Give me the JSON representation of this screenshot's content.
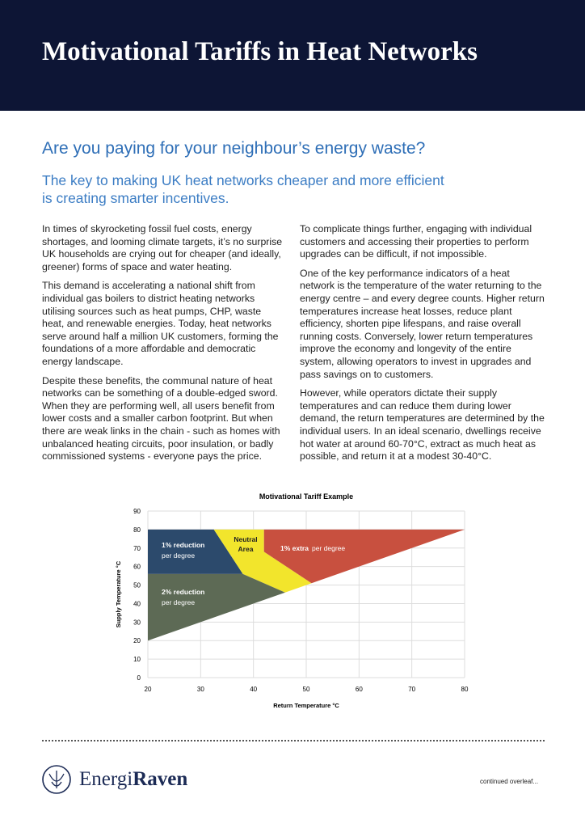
{
  "header": {
    "title": "Motivational Tariffs in Heat Networks"
  },
  "headline": "Are you paying for your neighbour’s energy waste?",
  "subheadline": "The key to making UK heat networks cheaper and more efficient is creating smarter incentives.",
  "columns": [
    [
      "In times of skyrocketing fossil fuel costs, energy shortages, and looming climate targets, it’s no surprise UK households are crying out for cheaper (and ideally, greener) forms of space and water heating.",
      "This demand is accelerating a national shift from individual gas boilers to district heating networks utilising sources such as heat pumps, CHP, waste heat, and renewable energies. Today, heat networks serve around half a million UK customers, forming the foundations of a more affordable and democratic energy landscape.",
      "Despite these benefits, the communal nature of heat networks can be something of a double-edged sword. When they are performing well, all users benefit from lower costs and a smaller carbon footprint. But when there are weak links in the chain - such as homes with unbalanced heating circuits, poor insulation, or badly commissioned systems - everyone pays the price."
    ],
    [
      "To complicate things further, engaging with individual customers and accessing their properties to perform upgrades can be difficult, if not impossible.",
      "One of the key performance indicators of a heat network is the temperature of the water returning to the energy centre – and every degree counts. Higher return temperatures increase heat losses, reduce plant efficiency, shorten pipe lifespans, and raise overall running costs. Conversely, lower return temperatures improve the economy and longevity of the entire system, allowing operators to invest in upgrades and pass savings on to customers.",
      "However, while operators dictate their supply temperatures and can reduce them during lower demand, the return temperatures are determined by the individual users. In an ideal scenario, dwellings receive hot water at around 60-70°C, extract as much heat as possible, and return it at a modest 30-40°C."
    ]
  ],
  "chart_data": {
    "type": "area",
    "title": "Motivational Tariff Example",
    "x_label": "Return Temperature °C",
    "y_label": "Supply Temperature °C",
    "xlim": [
      20,
      80
    ],
    "xticks": [
      20,
      30,
      40,
      50,
      60,
      70,
      80
    ],
    "ylim": [
      0,
      90
    ],
    "yticks": [
      0,
      10,
      20,
      30,
      40,
      50,
      60,
      70,
      80,
      90
    ],
    "grid": true,
    "regions": [
      {
        "label": [
          "1% reduction",
          "per degree"
        ],
        "color": "#2c4a6c",
        "x": [
          20,
          32.5,
          38,
          20
        ],
        "y": [
          80,
          80,
          56,
          56
        ]
      },
      {
        "label": [
          "Neutral",
          "Area"
        ],
        "color": "#f2e52c",
        "x": [
          32.5,
          42,
          42,
          51,
          46,
          38
        ],
        "y": [
          80,
          80,
          68,
          51,
          46,
          56
        ]
      },
      {
        "label": [
          "1% extra",
          "per degree"
        ],
        "color": "#c8503f",
        "x": [
          42,
          80,
          51,
          42
        ],
        "y": [
          80,
          80,
          51,
          68
        ]
      },
      {
        "label": [
          "2% reduction",
          "per degree"
        ],
        "color": "#5d6a55",
        "x": [
          20,
          38,
          46,
          20
        ],
        "y": [
          56,
          56,
          46,
          20
        ]
      }
    ]
  },
  "footer": {
    "logo": [
      "Energi",
      "Raven"
    ],
    "note": "continued overleaf..."
  }
}
